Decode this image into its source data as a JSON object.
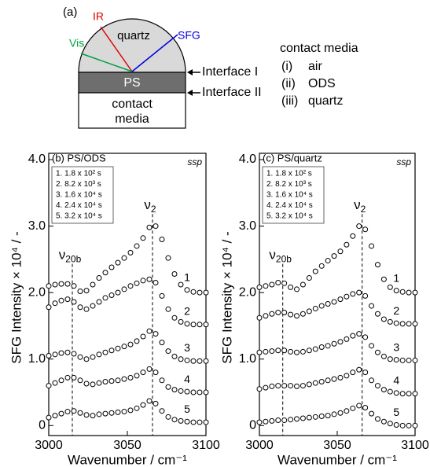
{
  "diagram": {
    "label": "(a)",
    "ir": "IR",
    "vis": "Vis",
    "sfg": "SFG",
    "quartz": "quartz",
    "ps": "PS",
    "media_box": [
      "contact",
      "media"
    ],
    "interface1": "Interface I",
    "interface2": "Interface II",
    "media_title": "contact media",
    "media_list": [
      [
        "(i)",
        "air"
      ],
      [
        "(ii)",
        "ODS"
      ],
      [
        "(iii)",
        "quartz"
      ]
    ]
  },
  "chart_data": [
    {
      "type": "scatter",
      "title": "(b) PS/ODS",
      "mode": "ssp",
      "xlabel": "Wavenumber / cm⁻¹",
      "ylabel": "SFG Intensity × 10⁴ / -",
      "notes": [
        "1. 1.8 x 10² s",
        "2. 8.2 x 10³ s",
        "3. 1.6 x 10⁴ s",
        "4. 2.4 x 10⁴ s",
        "5. 3.2 x 10⁴ s"
      ],
      "annotations": [
        {
          "symbol": "ν",
          "sub": "20b",
          "x": 3015
        },
        {
          "symbol": "ν",
          "sub": "2",
          "x": 3066
        }
      ],
      "x": [
        3000,
        3004,
        3008,
        3012,
        3016,
        3020,
        3024,
        3028,
        3032,
        3036,
        3040,
        3044,
        3048,
        3052,
        3056,
        3060,
        3064,
        3068,
        3072,
        3076,
        3080,
        3084,
        3088,
        3092,
        3096,
        3100
      ],
      "series": [
        {
          "name": "1",
          "color": "#000000",
          "values": [
            2.1,
            2.12,
            2.13,
            2.13,
            2.1,
            2.02,
            2.03,
            2.12,
            2.22,
            2.3,
            2.38,
            2.45,
            2.52,
            2.6,
            2.7,
            2.82,
            2.98,
            3.0,
            2.8,
            2.52,
            2.28,
            2.12,
            2.04,
            2.01,
            2.0,
            2.0
          ]
        },
        {
          "name": "2",
          "color": "#000000",
          "values": [
            1.78,
            1.84,
            1.88,
            1.9,
            1.86,
            1.78,
            1.75,
            1.8,
            1.86,
            1.92,
            1.96,
            2.0,
            2.05,
            2.1,
            2.14,
            2.18,
            2.2,
            2.15,
            1.95,
            1.75,
            1.62,
            1.56,
            1.53,
            1.52,
            1.52,
            1.52
          ]
        },
        {
          "name": "3",
          "color": "#000000",
          "values": [
            1.05,
            1.07,
            1.09,
            1.1,
            1.08,
            1.03,
            1.0,
            1.03,
            1.07,
            1.1,
            1.13,
            1.16,
            1.19,
            1.22,
            1.27,
            1.34,
            1.42,
            1.38,
            1.25,
            1.12,
            1.04,
            1.0,
            0.98,
            0.97,
            0.97,
            0.97
          ]
        },
        {
          "name": "4",
          "color": "#000000",
          "values": [
            0.6,
            0.64,
            0.68,
            0.72,
            0.72,
            0.68,
            0.63,
            0.62,
            0.64,
            0.66,
            0.67,
            0.68,
            0.7,
            0.72,
            0.75,
            0.8,
            0.85,
            0.8,
            0.68,
            0.58,
            0.54,
            0.52,
            0.51,
            0.5,
            0.5,
            0.5
          ]
        },
        {
          "name": "5",
          "color": "#000000",
          "values": [
            0.12,
            0.15,
            0.18,
            0.21,
            0.22,
            0.19,
            0.16,
            0.15,
            0.17,
            0.18,
            0.19,
            0.2,
            0.21,
            0.23,
            0.26,
            0.31,
            0.37,
            0.33,
            0.22,
            0.13,
            0.09,
            0.07,
            0.06,
            0.05,
            0.05,
            0.05
          ]
        }
      ],
      "xlim": [
        3000,
        3100
      ],
      "xticks": [
        3000,
        3050,
        3100
      ],
      "ylim": [
        -0.15,
        4.0
      ],
      "yticks": [
        0,
        {
          "value": 1,
          "label": "1.0"
        },
        {
          "value": 2,
          "label": "2.0"
        },
        {
          "value": 3,
          "label": "3.0"
        },
        {
          "value": 4,
          "label": "4.0"
        }
      ]
    },
    {
      "type": "scatter",
      "title": "(c) PS/quartz",
      "mode": "ssp",
      "xlabel": "Wavenumber / cm⁻¹",
      "ylabel": "SFG Intensity × 10⁴ / -",
      "notes": [
        "1. 1.8 x 10² s",
        "2. 8.2 x 10³ s",
        "3. 1.6 x 10⁴ s",
        "4. 2.4 x 10⁴ s",
        "5. 3.2 x 10⁴ s"
      ],
      "annotations": [
        {
          "symbol": "ν",
          "sub": "20b",
          "x": 3015
        },
        {
          "symbol": "ν",
          "sub": "2",
          "x": 3066
        }
      ],
      "x": [
        3000,
        3004,
        3008,
        3012,
        3016,
        3020,
        3024,
        3028,
        3032,
        3036,
        3040,
        3044,
        3048,
        3052,
        3056,
        3060,
        3064,
        3068,
        3072,
        3076,
        3080,
        3084,
        3088,
        3092,
        3096,
        3100
      ],
      "series": [
        {
          "name": "1",
          "color": "#000000",
          "values": [
            2.08,
            2.1,
            2.12,
            2.15,
            2.14,
            2.08,
            2.05,
            2.12,
            2.22,
            2.32,
            2.4,
            2.48,
            2.55,
            2.62,
            2.72,
            2.85,
            3.0,
            2.95,
            2.7,
            2.42,
            2.2,
            2.08,
            2.03,
            2.01,
            2.0,
            2.0
          ]
        },
        {
          "name": "2",
          "color": "#000000",
          "values": [
            1.62,
            1.65,
            1.68,
            1.7,
            1.7,
            1.67,
            1.65,
            1.68,
            1.72,
            1.76,
            1.8,
            1.83,
            1.86,
            1.9,
            1.94,
            1.98,
            2.0,
            1.95,
            1.8,
            1.68,
            1.6,
            1.56,
            1.54,
            1.53,
            1.53,
            1.53
          ]
        },
        {
          "name": "3",
          "color": "#000000",
          "values": [
            1.1,
            1.11,
            1.12,
            1.13,
            1.13,
            1.11,
            1.1,
            1.11,
            1.13,
            1.15,
            1.18,
            1.2,
            1.23,
            1.26,
            1.3,
            1.35,
            1.38,
            1.33,
            1.2,
            1.1,
            1.04,
            1.0,
            0.99,
            0.98,
            0.98,
            0.98
          ]
        },
        {
          "name": "4",
          "color": "#000000",
          "values": [
            0.55,
            0.57,
            0.59,
            0.6,
            0.6,
            0.6,
            0.59,
            0.6,
            0.62,
            0.64,
            0.66,
            0.68,
            0.7,
            0.72,
            0.75,
            0.8,
            0.84,
            0.8,
            0.68,
            0.6,
            0.54,
            0.51,
            0.49,
            0.48,
            0.48,
            0.48
          ]
        },
        {
          "name": "5",
          "color": "#000000",
          "values": [
            0.05,
            0.06,
            0.07,
            0.08,
            0.08,
            0.09,
            0.1,
            0.11,
            0.12,
            0.13,
            0.14,
            0.15,
            0.17,
            0.19,
            0.22,
            0.26,
            0.3,
            0.27,
            0.18,
            0.1,
            0.06,
            0.03,
            0.01,
            0.0,
            0.0,
            0.0
          ]
        }
      ],
      "xlim": [
        3000,
        3100
      ],
      "xticks": [
        3000,
        3050,
        3100
      ],
      "ylim": [
        -0.15,
        4.0
      ],
      "yticks": [
        0,
        {
          "value": 1,
          "label": "1.0"
        },
        {
          "value": 2,
          "label": "2.0"
        },
        {
          "value": 3,
          "label": "3.0"
        },
        {
          "value": 4,
          "label": "4.0"
        }
      ]
    }
  ]
}
